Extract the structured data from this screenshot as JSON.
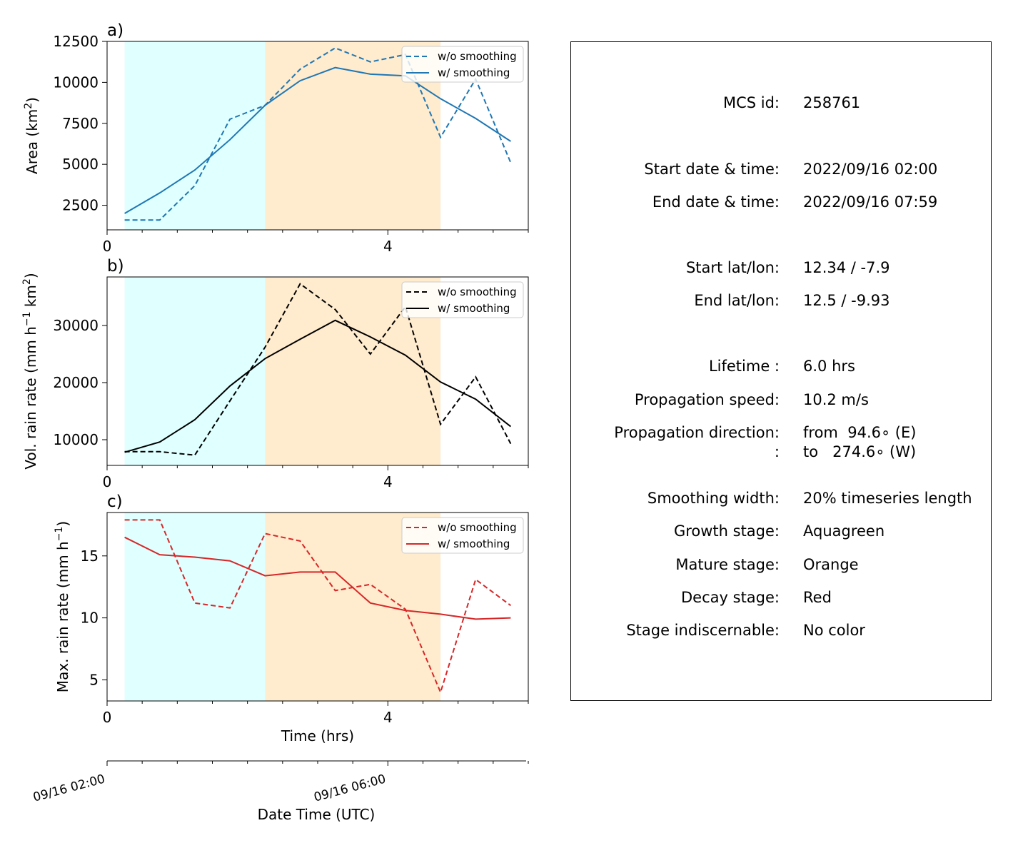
{
  "chart_data": [
    {
      "type": "line",
      "panel": "a)",
      "ylabel": "Area  (km$^2$)",
      "ylabel_main": "Area  (km",
      "ylabel_sup": "2",
      "ylabel_tail": ")",
      "xlim": [
        0,
        6
      ],
      "ylim": [
        1000,
        12500
      ],
      "yticks": [
        2500,
        5000,
        7500,
        10000,
        12500
      ],
      "xticks": [
        0,
        4
      ],
      "x": [
        0.25,
        0.75,
        1.25,
        1.75,
        2.25,
        2.75,
        3.25,
        3.75,
        4.25,
        4.75,
        5.25,
        5.75
      ],
      "color": "#1f77b4",
      "legend": "top-right",
      "series": [
        {
          "name": "w/o smoothing",
          "style": "dashed",
          "values": [
            1600,
            1600,
            3700,
            7750,
            8600,
            10800,
            12100,
            11250,
            11700,
            6650,
            10200,
            5100
          ]
        },
        {
          "name": "w/ smoothing",
          "style": "solid",
          "values": [
            2000,
            3250,
            4650,
            6500,
            8600,
            10100,
            10900,
            10500,
            10400,
            9000,
            7800,
            6400
          ]
        }
      ]
    },
    {
      "type": "line",
      "panel": "b)",
      "ylabel_main": "Vol. rain rate (mm h",
      "ylabel_sup1": "−1",
      "ylabel_mid": " km",
      "ylabel_sup2": "2",
      "ylabel_tail": ")",
      "xlim": [
        0,
        6
      ],
      "ylim": [
        5500,
        38500
      ],
      "yticks": [
        10000,
        20000,
        30000
      ],
      "xticks": [
        0,
        4
      ],
      "x": [
        0.25,
        0.75,
        1.25,
        1.75,
        2.25,
        2.75,
        3.25,
        3.75,
        4.25,
        4.75,
        5.25,
        5.75
      ],
      "color": "#000000",
      "legend": "top-right",
      "series": [
        {
          "name": "w/o smoothing",
          "style": "dashed",
          "values": [
            7900,
            7900,
            7300,
            16800,
            26200,
            37300,
            32800,
            25000,
            33300,
            12700,
            21000,
            9300
          ]
        },
        {
          "name": "w/ smoothing",
          "style": "solid",
          "values": [
            7800,
            9600,
            13500,
            19400,
            24200,
            27600,
            30900,
            28000,
            24800,
            20100,
            17100,
            12300
          ]
        }
      ]
    },
    {
      "type": "line",
      "panel": "c)",
      "ylabel_main": "Max. rain rate  (mm h",
      "ylabel_sup": "−1",
      "ylabel_tail": ")",
      "xlabel": "Time (hrs)",
      "xlim": [
        0,
        6
      ],
      "ylim": [
        3.3,
        18.5
      ],
      "yticks": [
        5,
        10,
        15
      ],
      "xticks": [
        0,
        4
      ],
      "x": [
        0.25,
        0.75,
        1.25,
        1.75,
        2.25,
        2.75,
        3.25,
        3.75,
        4.25,
        4.75,
        5.25,
        5.75
      ],
      "color": "#d62728",
      "legend": "top-right",
      "series": [
        {
          "name": "w/o smoothing",
          "style": "dashed",
          "values": [
            17.9,
            17.9,
            11.2,
            10.8,
            16.8,
            16.2,
            12.2,
            12.7,
            10.7,
            4.0,
            13.1,
            11.0
          ]
        },
        {
          "name": "w/ smoothing",
          "style": "solid",
          "values": [
            16.5,
            15.1,
            14.9,
            14.6,
            13.4,
            13.7,
            13.7,
            11.2,
            10.6,
            10.3,
            9.9,
            10.0
          ]
        }
      ]
    }
  ],
  "stages": [
    {
      "name": "growth",
      "from": 0.25,
      "to": 2.25,
      "color": "#e0ffff"
    },
    {
      "name": "mature",
      "from": 2.25,
      "to": 4.75,
      "color": "#ffebcd"
    }
  ],
  "datetime_axis": {
    "xlabel": "Date Time (UTC)",
    "ticks": [
      {
        "x": 0,
        "label": "09/16 02:00"
      },
      {
        "x": 4,
        "label": "09/16 06:00"
      }
    ]
  },
  "info": {
    "rows": [
      {
        "label": "MCS id:",
        "value": "258761"
      },
      {
        "label": "Start date & time:",
        "value": "2022/09/16 02:00"
      },
      {
        "label": "End date & time:",
        "value": "2022/09/16 07:59"
      },
      {
        "label": "Start lat/lon:",
        "value": "12.34 / -7.9"
      },
      {
        "label": "End lat/lon:",
        "value": "12.5 / -9.93"
      },
      {
        "label": "Lifetime :",
        "value": "6.0 hrs"
      },
      {
        "label": "Propagation speed:",
        "value": "10.2 m/s"
      },
      {
        "label": "Propagation direction:",
        "value": "from  94.6∘ (E)"
      },
      {
        "label": ":",
        "value": "to   274.6∘ (W)"
      },
      {
        "label": "Smoothing width:",
        "value": "20% timeseries length"
      },
      {
        "label": "Growth stage:",
        "value": "Aquagreen"
      },
      {
        "label": "Mature stage:",
        "value": "Orange"
      },
      {
        "label": "Decay stage:",
        "value": "Red"
      },
      {
        "label": "Stage indiscernable:",
        "value": "No color"
      }
    ]
  }
}
